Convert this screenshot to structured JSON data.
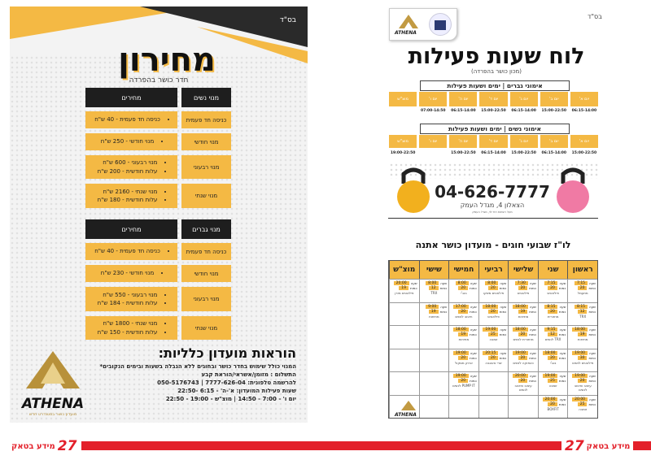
{
  "left_flyer": {
    "bsd": "בס\"ד",
    "title": "מחירון",
    "subtitle": "חדר כושר בהפרדה",
    "women": {
      "header_type": "מנוי נשים",
      "header_prices": "מחירים",
      "rows": [
        {
          "type": "כניסה חד פעמית",
          "prices": [
            "כניסה חד פעמית - 40 ש\"ח"
          ]
        },
        {
          "type": "מנוי חודשי",
          "prices": [
            "מנוי חודשי - 250 ש\"ח"
          ]
        },
        {
          "type": "מנוי רבעוני",
          "prices": [
            "מנוי רבעוני - 600 ש\"ח",
            "עלות חודשית - 200 ש\"ח"
          ]
        },
        {
          "type": "מנוי שנתי",
          "prices": [
            "מנוי שנתי - 2160 ש\"ח",
            "עלות חודשית - 180 ש\"ח"
          ]
        }
      ]
    },
    "men": {
      "header_type": "מנוי גברים",
      "header_prices": "מחירים",
      "rows": [
        {
          "type": "כניסה חד פעמית",
          "prices": [
            "כניסה חד פעמית - 40 ש\"ח"
          ]
        },
        {
          "type": "מנוי חודשי",
          "prices": [
            "מנוי חודשי - 230 ש\"ח"
          ]
        },
        {
          "type": "מנוי רבעוני",
          "prices": [
            "מנוי רבעוני - 550 ש\"ח",
            "עלות חודשית - 184 ש\"ח"
          ]
        },
        {
          "type": "מנוי שנתי",
          "prices": [
            "מנוי שנתי - 1800 ש\"ח",
            "עלות חודשית - 150 ש\"ח"
          ]
        }
      ]
    },
    "rules_title": "הוראות מועדון כלליות:",
    "rules": [
      "המנוי כולל שימוש בחדר כושר ובחוגים ללא הגבלה בשעות ובימים הנקובים*",
      "התשלום : מזומן/אשראי/הוראת קבע",
      "להרשמה טלפונית: 7777-626-04 | 050-5176743",
      "שעות פעילות המועדון: א'-ה' - 6:15 -22:50",
      "יום ו' - 7:00 - 14:50 | מוצ\"ש - 19:00 - 22:50"
    ],
    "logo_text": "ATHENA",
    "logo_tagline": "מועדון כושר בסטנדרט חדש"
  },
  "right_flyer": {
    "bsd": "בס\"ד",
    "logo_text": "ATHENA",
    "title": "לוח שעות פעילות",
    "subtitle": "(מכון כושר בהפרדה)",
    "days": [
      "יום א'",
      "יום ב'",
      "יום ג'",
      "יום ד'",
      "יום ה'",
      "יום ו'",
      "מוצ\"ש"
    ],
    "men_banner": "אימוני גברים | ימים ושעות פעילות",
    "men_hours": [
      "06:15-14:00",
      "15:00-22:50",
      "06:15-14:00",
      "15:00-22:50",
      "06:15-14:00",
      "07:00-14:50",
      ""
    ],
    "women_banner": "אימוני נשים | ימים ושעות פעילות",
    "women_hours": [
      "15:00-22:50",
      "06:15-14:00",
      "15:00-22:50",
      "06:15-14:00",
      "15:00-22:50",
      "",
      "19:00-22:50"
    ],
    "phone": "04-626-7777",
    "address": "הצאלון 4, מגדל העמק",
    "address_note": "מעל רשתות רמי לוי, מגדל העמק",
    "schedule_title": "לו\"ז שבועי חוגים - מועדון כושר אתנה",
    "schedule": {
      "time_label": "שעה",
      "count_label": "כמות",
      "days": [
        "ראשון",
        "שני",
        "שלישי",
        "רביעי",
        "חמישי",
        "שישי",
        "מוצ\"ש"
      ],
      "rows": [
        [
          {
            "time": "7:15",
            "count": "20",
            "name": "מתעמל"
          },
          {
            "time": "7:15",
            "count": "20",
            "name": "פילאטיס"
          },
          {
            "time": "7:30",
            "count": "20",
            "name": "פילאטיס"
          },
          {
            "time": "8:00",
            "count": "20",
            "name": "פילאטיס משקו"
          },
          {
            "time": "8:00",
            "count": "20",
            "name": "בנג'י"
          },
          {
            "time": "8:00",
            "count": "12",
            "name": "TRX"
          },
          {
            "time": "20:00",
            "count": "19",
            "name": "פילאטיס מזרן"
          }
        ],
        [
          {
            "time": "8:15",
            "count": "12",
            "name": "TRX"
          },
          {
            "time": "8:15",
            "count": "20",
            "name": "מחזורית"
          },
          {
            "time": "18:00",
            "count": "19",
            "name": "מתיחות"
          },
          {
            "time": "18:00",
            "count": "20",
            "name": "פילאטיס"
          },
          {
            "time": "17:00",
            "count": "20",
            "name": "חיטוב לנשים"
          },
          {
            "time": "9:00",
            "count": "19",
            "name": "מתיחות"
          },
          null
        ],
        [
          {
            "time": "18:00",
            "count": "19",
            "name": "מתיחות"
          },
          {
            "time": "9:15",
            "count": "12",
            "name": "TRX לנשים"
          },
          {
            "time": "18:00",
            "count": "20",
            "name": "מחזורית לנשים"
          },
          {
            "time": "19:00",
            "count": "25",
            "name": "זומבה"
          },
          {
            "time": "18:00",
            "count": "19",
            "name": "מתיחות"
          },
          null,
          null
        ],
        [
          {
            "time": "19:00",
            "count": "30",
            "name": "פילאטיס לנשים"
          },
          {
            "time": "18:00",
            "count": "20",
            "name": "בנג'י"
          },
          {
            "time": "19:00",
            "count": "20",
            "name": "כאפוקה לנשים"
          },
          {
            "time": "20:15",
            "count": "20",
            "name": "שרי אאוגבה"
          },
          {
            "time": "19:00",
            "count": "20",
            "name": "ארוק מסקול"
          },
          null,
          null
        ],
        [
          {
            "time": "19:00",
            "count": "20",
            "name": "עיצוב וחיטוב לנשים"
          },
          {
            "time": "19:00",
            "count": "25",
            "name": "זומבה"
          },
          {
            "time": "20:00",
            "count": "20",
            "name": "עיצוב וחיטוב לנשים"
          },
          null,
          {
            "time": "19:00",
            "count": "20",
            "name": "PUMP IT לנשים"
          },
          null,
          null
        ],
        [
          {
            "time": "20:00",
            "count": "25",
            "name": "זומבה"
          },
          {
            "time": "20:00",
            "count": "20",
            "name": "BOXFIT"
          },
          null,
          null,
          null,
          null,
          "logo"
        ]
      ]
    }
  },
  "footer": {
    "page_number_left": "27",
    "page_number_right": "27",
    "brand": "מידע בטאק"
  },
  "colors": {
    "yellow": "#f4b944",
    "dark": "#1e1e1e",
    "red": "#e3202a"
  }
}
